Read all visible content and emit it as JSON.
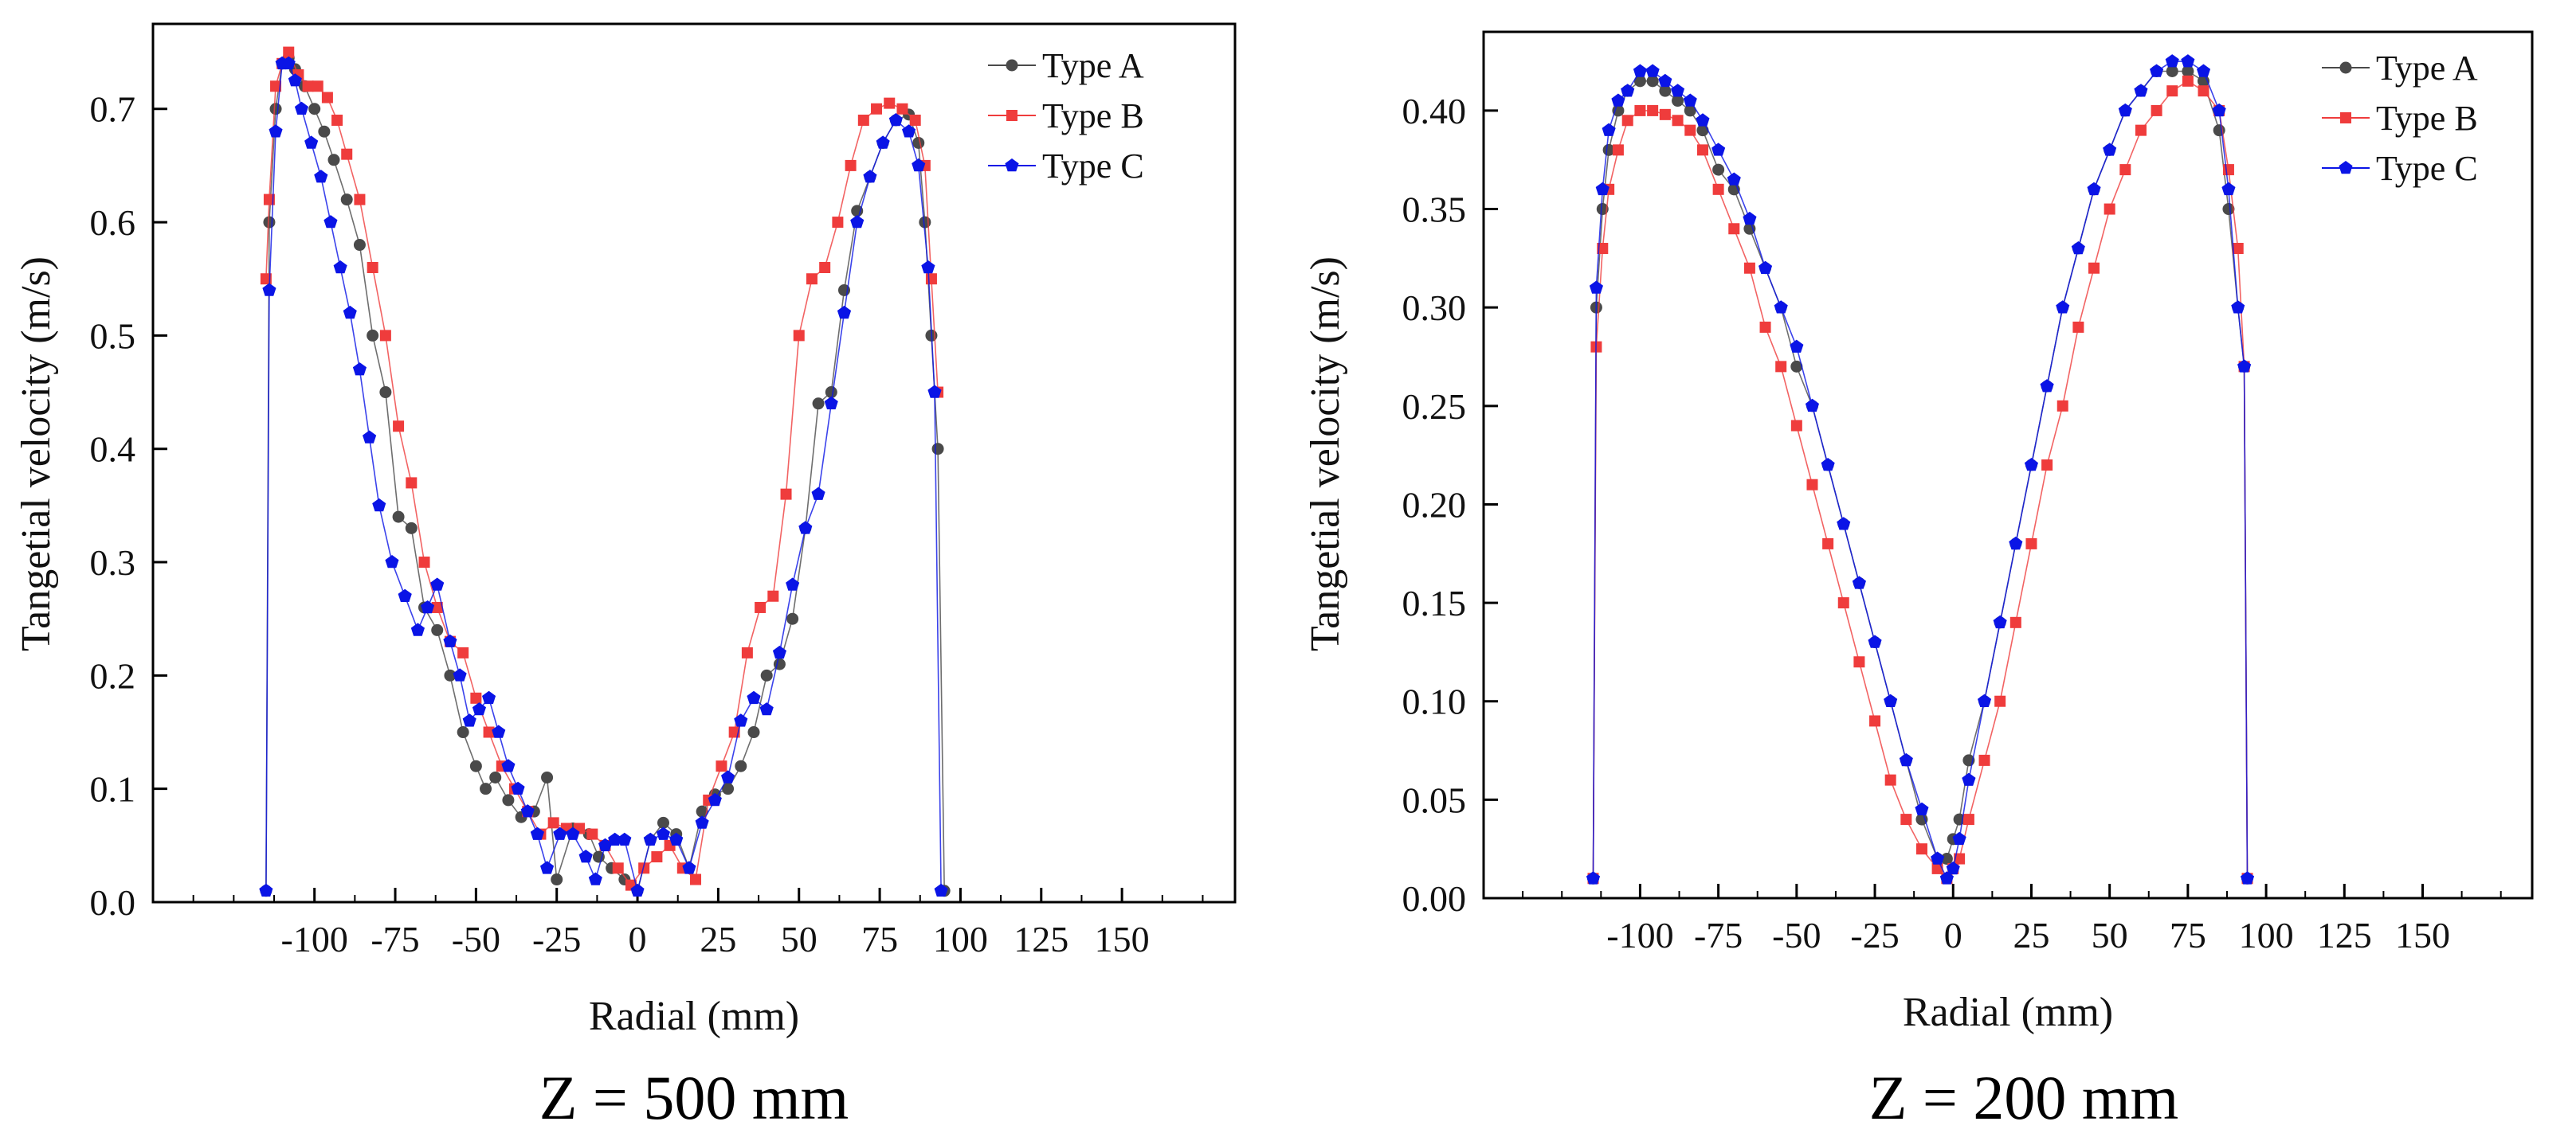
{
  "series_styles": [
    {
      "name": "Type A",
      "color": "#4a4a4a",
      "marker": "circle"
    },
    {
      "name": "Type B",
      "color": "#ef3c3c",
      "marker": "square"
    },
    {
      "name": "Type C",
      "color": "#0a14e6",
      "marker": "pentagon"
    }
  ],
  "chart_data": [
    {
      "type": "line",
      "caption": "Z = 500 mm",
      "xlabel": "Radial  (mm)",
      "ylabel": "Tangetial velocity  (m/s)",
      "xlim": [
        -150,
        185
      ],
      "ylim": [
        0.0,
        0.775
      ],
      "xticks": [
        -100,
        -75,
        -50,
        -25,
        0,
        25,
        50,
        75,
        100,
        125,
        150
      ],
      "xtick_labels": [
        "-100",
        "-75",
        "-50",
        "-25",
        "0",
        "25",
        "50",
        "75",
        "100",
        "125",
        "150"
      ],
      "yticks": [
        0.0,
        0.1,
        0.2,
        0.3,
        0.4,
        0.5,
        0.6,
        0.7
      ],
      "ytick_labels": [
        "0.0",
        "0.1",
        "0.2",
        "0.3",
        "0.4",
        "0.5",
        "0.6",
        "0.7"
      ],
      "legend_position": "top-right",
      "series": [
        {
          "name": "Type A",
          "x": [
            -115,
            -114,
            -112,
            -110,
            -108,
            -106,
            -103,
            -100,
            -97,
            -94,
            -90,
            -86,
            -82,
            -78,
            -74,
            -70,
            -66,
            -62,
            -58,
            -54,
            -50,
            -47,
            -44,
            -40,
            -36,
            -32,
            -28,
            -25,
            -20,
            -15,
            -12,
            -8,
            -4,
            0,
            4,
            8,
            12,
            16,
            20,
            24,
            28,
            32,
            36,
            40,
            44,
            48,
            52,
            56,
            60,
            64,
            68,
            72,
            76,
            80,
            84,
            87,
            89,
            91,
            93,
            95
          ],
          "y": [
            0.01,
            0.6,
            0.7,
            0.74,
            0.745,
            0.735,
            0.72,
            0.7,
            0.68,
            0.655,
            0.62,
            0.58,
            0.5,
            0.45,
            0.34,
            0.33,
            0.26,
            0.24,
            0.2,
            0.15,
            0.12,
            0.1,
            0.11,
            0.09,
            0.075,
            0.08,
            0.11,
            0.02,
            0.065,
            0.06,
            0.04,
            0.03,
            0.02,
            0.01,
            0.055,
            0.07,
            0.06,
            0.03,
            0.08,
            0.095,
            0.1,
            0.12,
            0.15,
            0.2,
            0.21,
            0.25,
            0.33,
            0.44,
            0.45,
            0.54,
            0.61,
            0.64,
            0.67,
            0.69,
            0.695,
            0.67,
            0.6,
            0.5,
            0.4,
            0.01
          ]
        },
        {
          "name": "Type B",
          "x": [
            -115,
            -114,
            -112,
            -110,
            -108,
            -105,
            -102,
            -99,
            -96,
            -93,
            -90,
            -86,
            -82,
            -78,
            -74,
            -70,
            -66,
            -62,
            -58,
            -54,
            -50,
            -46,
            -42,
            -38,
            -34,
            -30,
            -26,
            -22,
            -18,
            -14,
            -10,
            -6,
            -2,
            2,
            6,
            10,
            14,
            18,
            22,
            26,
            30,
            34,
            38,
            42,
            46,
            50,
            54,
            58,
            62,
            66,
            70,
            74,
            78,
            82,
            86,
            89,
            91,
            93
          ],
          "y": [
            0.55,
            0.62,
            0.72,
            0.74,
            0.75,
            0.73,
            0.72,
            0.72,
            0.71,
            0.69,
            0.66,
            0.62,
            0.56,
            0.5,
            0.42,
            0.37,
            0.3,
            0.26,
            0.23,
            0.22,
            0.18,
            0.15,
            0.12,
            0.1,
            0.08,
            0.06,
            0.07,
            0.065,
            0.065,
            0.06,
            0.05,
            0.03,
            0.015,
            0.03,
            0.04,
            0.05,
            0.03,
            0.02,
            0.09,
            0.12,
            0.15,
            0.22,
            0.26,
            0.27,
            0.36,
            0.5,
            0.55,
            0.56,
            0.6,
            0.65,
            0.69,
            0.7,
            0.705,
            0.7,
            0.69,
            0.65,
            0.55,
            0.45
          ]
        },
        {
          "name": "Type C",
          "x": [
            -115,
            -114,
            -112,
            -110,
            -108,
            -106,
            -104,
            -101,
            -98,
            -95,
            -92,
            -89,
            -86,
            -83,
            -80,
            -76,
            -72,
            -68,
            -65,
            -62,
            -58,
            -55,
            -52,
            -49,
            -46,
            -43,
            -40,
            -37,
            -34,
            -31,
            -28,
            -24,
            -20,
            -16,
            -13,
            -10,
            -7,
            -4,
            0,
            4,
            8,
            12,
            16,
            20,
            24,
            28,
            32,
            36,
            40,
            44,
            48,
            52,
            56,
            60,
            64,
            68,
            72,
            76,
            80,
            84,
            87,
            90,
            92,
            94
          ],
          "y": [
            0.01,
            0.54,
            0.68,
            0.74,
            0.74,
            0.725,
            0.7,
            0.67,
            0.64,
            0.6,
            0.56,
            0.52,
            0.47,
            0.41,
            0.35,
            0.3,
            0.27,
            0.24,
            0.26,
            0.28,
            0.23,
            0.2,
            0.16,
            0.17,
            0.18,
            0.15,
            0.12,
            0.1,
            0.08,
            0.06,
            0.03,
            0.06,
            0.06,
            0.04,
            0.02,
            0.05,
            0.055,
            0.055,
            0.01,
            0.055,
            0.06,
            0.055,
            0.03,
            0.07,
            0.09,
            0.11,
            0.16,
            0.18,
            0.17,
            0.22,
            0.28,
            0.33,
            0.36,
            0.44,
            0.52,
            0.6,
            0.64,
            0.67,
            0.69,
            0.68,
            0.65,
            0.56,
            0.45,
            0.01
          ]
        }
      ]
    },
    {
      "type": "line",
      "caption": "Z = 200 mm",
      "xlabel": "Radial  (mm)",
      "ylabel": "Tangetial velocity  (m/s)",
      "xlim": [
        -150,
        185
      ],
      "ylim": [
        0.0,
        0.44
      ],
      "xticks": [
        -100,
        -75,
        -50,
        -25,
        0,
        25,
        50,
        75,
        100,
        125,
        150
      ],
      "xtick_labels": [
        "-100",
        "-75",
        "-50",
        "-25",
        "0",
        "25",
        "50",
        "75",
        "100",
        "125",
        "150"
      ],
      "yticks": [
        0.0,
        0.05,
        0.1,
        0.15,
        0.2,
        0.25,
        0.3,
        0.35,
        0.4
      ],
      "ytick_labels": [
        "0.00",
        "0.05",
        "0.10",
        "0.15",
        "0.20",
        "0.25",
        "0.30",
        "0.35",
        "0.40"
      ],
      "legend_position": "top-right",
      "series": [
        {
          "name": "Type A",
          "x": [
            -115,
            -114,
            -112,
            -110,
            -107,
            -104,
            -100,
            -96,
            -92,
            -88,
            -84,
            -80,
            -75,
            -70,
            -65,
            -60,
            -55,
            -50,
            -45,
            -40,
            -35,
            -30,
            -25,
            -20,
            -15,
            -10,
            -5,
            -2,
            0,
            2,
            5,
            10,
            15,
            20,
            25,
            30,
            35,
            40,
            45,
            50,
            55,
            60,
            65,
            70,
            75,
            80,
            85,
            88,
            91,
            93,
            94
          ],
          "y": [
            0.01,
            0.3,
            0.35,
            0.38,
            0.4,
            0.41,
            0.415,
            0.415,
            0.41,
            0.405,
            0.4,
            0.39,
            0.37,
            0.36,
            0.34,
            0.32,
            0.3,
            0.27,
            0.25,
            0.22,
            0.19,
            0.16,
            0.13,
            0.1,
            0.07,
            0.04,
            0.02,
            0.02,
            0.03,
            0.04,
            0.07,
            0.1,
            0.14,
            0.18,
            0.22,
            0.26,
            0.3,
            0.33,
            0.36,
            0.38,
            0.4,
            0.41,
            0.42,
            0.42,
            0.42,
            0.415,
            0.39,
            0.35,
            0.3,
            0.27,
            0.01
          ]
        },
        {
          "name": "Type B",
          "x": [
            -115,
            -114,
            -112,
            -110,
            -107,
            -104,
            -100,
            -96,
            -92,
            -88,
            -84,
            -80,
            -75,
            -70,
            -65,
            -60,
            -55,
            -50,
            -45,
            -40,
            -35,
            -30,
            -25,
            -20,
            -15,
            -10,
            -5,
            -2,
            0,
            2,
            5,
            10,
            15,
            20,
            25,
            30,
            35,
            40,
            45,
            50,
            55,
            60,
            65,
            70,
            75,
            80,
            85,
            88,
            91,
            93,
            94
          ],
          "y": [
            0.01,
            0.28,
            0.33,
            0.36,
            0.38,
            0.395,
            0.4,
            0.4,
            0.398,
            0.395,
            0.39,
            0.38,
            0.36,
            0.34,
            0.32,
            0.29,
            0.27,
            0.24,
            0.21,
            0.18,
            0.15,
            0.12,
            0.09,
            0.06,
            0.04,
            0.025,
            0.015,
            0.01,
            0.015,
            0.02,
            0.04,
            0.07,
            0.1,
            0.14,
            0.18,
            0.22,
            0.25,
            0.29,
            0.32,
            0.35,
            0.37,
            0.39,
            0.4,
            0.41,
            0.415,
            0.41,
            0.4,
            0.37,
            0.33,
            0.27,
            0.01
          ]
        },
        {
          "name": "Type C",
          "x": [
            -115,
            -114,
            -112,
            -110,
            -107,
            -104,
            -100,
            -96,
            -92,
            -88,
            -84,
            -80,
            -75,
            -70,
            -65,
            -60,
            -55,
            -50,
            -45,
            -40,
            -35,
            -30,
            -25,
            -20,
            -15,
            -10,
            -5,
            -2,
            0,
            2,
            5,
            10,
            15,
            20,
            25,
            30,
            35,
            40,
            45,
            50,
            55,
            60,
            65,
            70,
            75,
            80,
            85,
            88,
            91,
            93,
            94
          ],
          "y": [
            0.01,
            0.31,
            0.36,
            0.39,
            0.405,
            0.41,
            0.42,
            0.42,
            0.415,
            0.41,
            0.405,
            0.395,
            0.38,
            0.365,
            0.345,
            0.32,
            0.3,
            0.28,
            0.25,
            0.22,
            0.19,
            0.16,
            0.13,
            0.1,
            0.07,
            0.045,
            0.02,
            0.01,
            0.015,
            0.03,
            0.06,
            0.1,
            0.14,
            0.18,
            0.22,
            0.26,
            0.3,
            0.33,
            0.36,
            0.38,
            0.4,
            0.41,
            0.42,
            0.425,
            0.425,
            0.42,
            0.4,
            0.36,
            0.3,
            0.27,
            0.01
          ]
        }
      ]
    }
  ]
}
